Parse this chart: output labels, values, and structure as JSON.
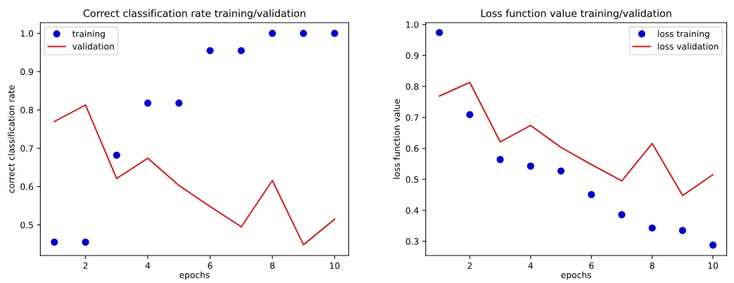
{
  "chart_data": [
    {
      "type": "scatter",
      "title": "Correct classification rate training/validation",
      "xlabel": "epochs",
      "ylabel": "correct classification rate",
      "x": [
        1,
        2,
        3,
        4,
        5,
        6,
        7,
        8,
        9,
        10
      ],
      "series": [
        {
          "name": "training",
          "color": "#0000cc",
          "marker": "circle",
          "values": [
            0.455,
            0.455,
            0.682,
            0.818,
            0.818,
            0.955,
            0.955,
            1.0,
            1.0,
            1.0
          ]
        },
        {
          "name": "validation",
          "type": "line",
          "color": "#cc2222",
          "line_style": "solid",
          "values": [
            0.77,
            0.813,
            0.621,
            0.674,
            0.603,
            0.548,
            0.495,
            0.616,
            0.448,
            0.515
          ]
        }
      ],
      "xlim": [
        0.55,
        10.45
      ],
      "ylim": [
        0.42,
        1.028
      ],
      "xticks": [
        2,
        4,
        6,
        8,
        10
      ],
      "yticks": [
        0.5,
        0.6,
        0.7,
        0.8,
        0.9,
        {
          "value": 1.0,
          "label": "1.0"
        }
      ],
      "legend": "top left",
      "grid": false
    },
    {
      "type": "scatter",
      "title": "Loss function value training/validation",
      "xlabel": "epochs",
      "ylabel": "loss function value",
      "x": [
        1,
        2,
        3,
        4,
        5,
        6,
        7,
        8,
        9,
        10
      ],
      "series": [
        {
          "name": "loss training",
          "color": "#0000cc",
          "marker": "circle",
          "values": [
            0.974,
            0.709,
            0.564,
            0.543,
            0.527,
            0.451,
            0.386,
            0.343,
            0.335,
            0.288
          ]
        },
        {
          "name": "loss validation",
          "type": "line",
          "color": "#cc2222",
          "line_style": "solid",
          "values": [
            0.769,
            0.813,
            0.621,
            0.674,
            0.603,
            0.548,
            0.495,
            0.616,
            0.448,
            0.515
          ]
        }
      ],
      "xlim": [
        0.55,
        10.45
      ],
      "ylim": [
        0.254,
        1.006
      ],
      "xticks": [
        2,
        4,
        6,
        8,
        10
      ],
      "yticks": [
        0.3,
        0.4,
        0.5,
        0.6,
        0.7,
        0.8,
        0.9,
        {
          "value": 1.0,
          "label": "1.0"
        }
      ],
      "legend": "top right",
      "grid": false
    }
  ]
}
